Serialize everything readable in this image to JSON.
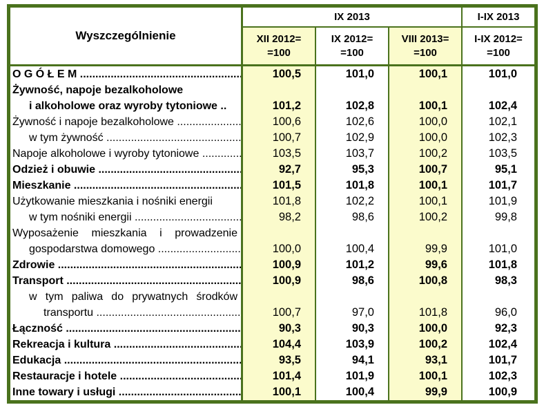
{
  "colors": {
    "border_green": "#4a721d",
    "highlight_yellow": "#fbfbcc",
    "text": "#000000",
    "background": "#ffffff"
  },
  "table": {
    "header": {
      "stub": "Wyszczególnienie",
      "group_month": "IX 2013",
      "group_period": "I-IX 2013",
      "subcols": [
        {
          "line1": "XII 2012=",
          "line2": "=100",
          "highlight": true
        },
        {
          "line1": "IX 2012=",
          "line2": "=100",
          "highlight": false
        },
        {
          "line1": "VIII 2013=",
          "line2": "=100",
          "highlight": true
        },
        {
          "line1": "I-IX 2012=",
          "line2": "=100",
          "highlight": false
        }
      ]
    },
    "rows": [
      {
        "bold": true,
        "lines": [
          {
            "text": "O G Ó Ł E M  ...............................................................",
            "indent": 0,
            "justify": false
          }
        ],
        "values": [
          "100,5",
          "101,0",
          "100,1",
          "101,0"
        ]
      },
      {
        "bold": true,
        "lines": [
          {
            "text": "Żywność, napoje bezalkoholowe",
            "indent": 0,
            "justify": false
          },
          {
            "text": "i alkoholowe oraz wyroby tytoniowe  ..",
            "indent": 1,
            "justify": false
          }
        ],
        "values": [
          "101,2",
          "102,8",
          "100,1",
          "102,4"
        ]
      },
      {
        "bold": false,
        "lines": [
          {
            "text": "Żywność i napoje bezalkoholowe ..........................",
            "indent": 0,
            "justify": false
          }
        ],
        "values": [
          "100,6",
          "102,6",
          "100,0",
          "102,1"
        ]
      },
      {
        "bold": false,
        "lines": [
          {
            "text": "w tym żywność ...............................................................",
            "indent": 1,
            "justify": false
          }
        ],
        "values": [
          "100,7",
          "102,9",
          "100,0",
          "102,3"
        ]
      },
      {
        "bold": false,
        "lines": [
          {
            "text": "Napoje alkoholowe i wyroby tytoniowe  ...............",
            "indent": 0,
            "justify": false
          }
        ],
        "values": [
          "103,5",
          "103,7",
          "100,2",
          "103,5"
        ]
      },
      {
        "bold": true,
        "lines": [
          {
            "text": "Odzież i obuwie  ...............................................................",
            "indent": 0,
            "justify": false
          }
        ],
        "values": [
          "92,7",
          "95,3",
          "100,7",
          "95,1"
        ]
      },
      {
        "bold": true,
        "lines": [
          {
            "text": "Mieszkanie ...............................................................",
            "indent": 0,
            "justify": false
          }
        ],
        "values": [
          "101,5",
          "101,8",
          "100,1",
          "101,7"
        ]
      },
      {
        "bold": false,
        "lines": [
          {
            "text": "Użytkowanie mieszkania i nośniki energii",
            "indent": 0,
            "justify": false
          }
        ],
        "values": [
          "101,8",
          "102,2",
          "100,1",
          "101,9"
        ]
      },
      {
        "bold": false,
        "lines": [
          {
            "text": "w tym nośniki energii  ....................................................",
            "indent": 1,
            "justify": false
          }
        ],
        "values": [
          "98,2",
          "98,6",
          "100,2",
          "99,8"
        ]
      },
      {
        "bold": false,
        "lines": [
          {
            "text": "Wyposażenie mieszkania i prowadzenie",
            "indent": 0,
            "justify": true
          },
          {
            "text": "gospodarstwa domowego ............................................",
            "indent": 1,
            "justify": false
          }
        ],
        "values": [
          "100,0",
          "100,4",
          "99,9",
          "101,0"
        ]
      },
      {
        "bold": true,
        "lines": [
          {
            "text": "Zdrowie  ...............................................................",
            "indent": 0,
            "justify": false
          }
        ],
        "values": [
          "100,9",
          "101,2",
          "99,6",
          "101,8"
        ]
      },
      {
        "bold": true,
        "lines": [
          {
            "text": "Transport  ...............................................................",
            "indent": 0,
            "justify": false
          }
        ],
        "values": [
          "100,9",
          "98,6",
          "100,8",
          "98,3"
        ]
      },
      {
        "bold": false,
        "lines": [
          {
            "text": "w tym paliwa do prywatnych środków",
            "indent": 1,
            "justify": true
          },
          {
            "text": "transportu ...........................................................",
            "indent": 2,
            "justify": false
          }
        ],
        "values": [
          "100,7",
          "97,0",
          "101,8",
          "96,0"
        ]
      },
      {
        "bold": true,
        "lines": [
          {
            "text": "Łączność ...............................................................",
            "indent": 0,
            "justify": false
          }
        ],
        "values": [
          "90,3",
          "90,3",
          "100,0",
          "92,3"
        ]
      },
      {
        "bold": true,
        "lines": [
          {
            "text": "Rekreacja i kultura  ......................................................",
            "indent": 0,
            "justify": false
          }
        ],
        "values": [
          "104,4",
          "103,9",
          "100,2",
          "102,4"
        ]
      },
      {
        "bold": true,
        "lines": [
          {
            "text": "Edukacja  ...............................................................",
            "indent": 0,
            "justify": false
          }
        ],
        "values": [
          "93,5",
          "94,1",
          "93,1",
          "101,7"
        ]
      },
      {
        "bold": true,
        "lines": [
          {
            "text": "Restauracje i hotele  ...................................................",
            "indent": 0,
            "justify": false
          }
        ],
        "values": [
          "101,4",
          "101,9",
          "100,1",
          "102,3"
        ]
      },
      {
        "bold": true,
        "lines": [
          {
            "text": "Inne towary i usługi  ....................................................",
            "indent": 0,
            "justify": false
          }
        ],
        "values": [
          "100,1",
          "100,4",
          "99,9",
          "100,9"
        ]
      }
    ]
  }
}
